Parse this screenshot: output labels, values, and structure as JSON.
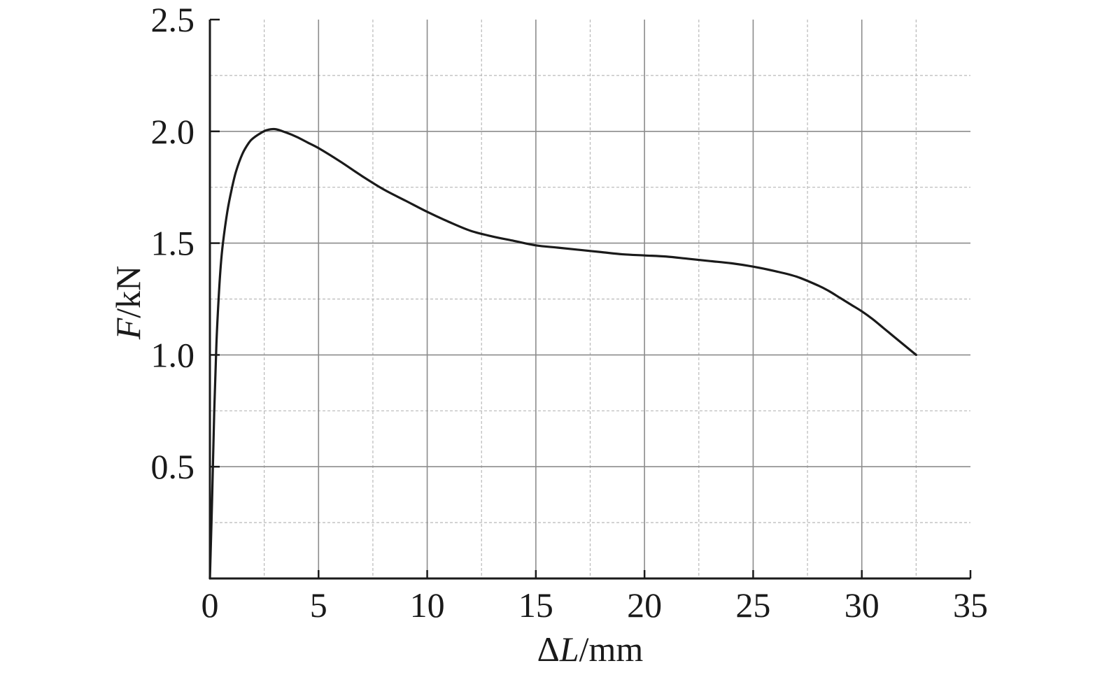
{
  "chart_data": {
    "type": "line",
    "title": "",
    "xlabel": {
      "prefix": "Δ",
      "var": "L",
      "unit": "/mm"
    },
    "ylabel": {
      "var": "F",
      "unit": "/kN"
    },
    "xlim": [
      0,
      35
    ],
    "ylim": [
      0,
      2.5
    ],
    "x_ticks": [
      0,
      5,
      10,
      15,
      20,
      25,
      30,
      35
    ],
    "x_tick_labels": [
      "0",
      "5",
      "10",
      "15",
      "20",
      "25",
      "30",
      "35"
    ],
    "y_ticks": [
      0.5,
      1.0,
      1.5,
      2.0,
      2.5
    ],
    "y_tick_labels": [
      "0.5",
      "1.0",
      "1.5",
      "2.0",
      "2.5"
    ],
    "x_minor_grid": [
      2.5,
      7.5,
      12.5,
      17.5,
      22.5,
      27.5,
      32.5
    ],
    "y_minor_grid": [
      0.25,
      0.75,
      1.25,
      1.75,
      2.25
    ],
    "grid": true,
    "colors": {
      "line": "#1a1a1a",
      "major_grid": "#8c8c8c",
      "minor_grid": "#b8b8b8",
      "axis": "#1a1a1a"
    },
    "series": [
      {
        "x": [
          0,
          0.1,
          0.2,
          0.3,
          0.4,
          0.5,
          0.6,
          0.8,
          1.0,
          1.2,
          1.5,
          1.8,
          2.0,
          2.3,
          2.6,
          3.0,
          3.5,
          4.0,
          4.5,
          5.0,
          6.0,
          7.0,
          8.0,
          9.0,
          10.0,
          11.0,
          12.0,
          13.0,
          14.0,
          15.0,
          16.0,
          17.0,
          18.0,
          19.0,
          20.0,
          21.0,
          22.0,
          23.0,
          24.0,
          25.0,
          26.0,
          27.0,
          28.0,
          28.5,
          29.0,
          29.5,
          30.0,
          30.5,
          31.0,
          31.5,
          32.0,
          32.5
        ],
        "y": [
          0,
          0.35,
          0.75,
          1.05,
          1.25,
          1.4,
          1.5,
          1.64,
          1.74,
          1.82,
          1.9,
          1.95,
          1.97,
          1.99,
          2.005,
          2.01,
          1.995,
          1.975,
          1.95,
          1.925,
          1.865,
          1.8,
          1.74,
          1.69,
          1.64,
          1.595,
          1.555,
          1.53,
          1.51,
          1.49,
          1.48,
          1.47,
          1.46,
          1.45,
          1.445,
          1.44,
          1.43,
          1.42,
          1.41,
          1.395,
          1.375,
          1.35,
          1.31,
          1.285,
          1.255,
          1.225,
          1.195,
          1.16,
          1.12,
          1.08,
          1.04,
          1.0
        ]
      }
    ]
  }
}
